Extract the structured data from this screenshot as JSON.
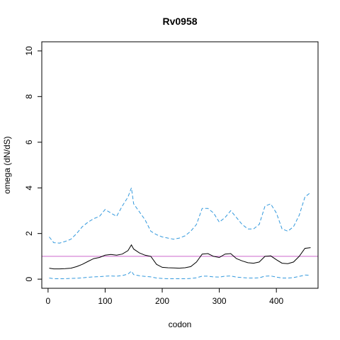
{
  "chart_data": {
    "type": "line",
    "title": "Rv0958",
    "xlabel": "codon",
    "ylabel": "omega (dN/dS)",
    "xlim": [
      -11,
      473
    ],
    "ylim": [
      -0.4,
      10.4
    ],
    "xticks": [
      0,
      100,
      200,
      300,
      400
    ],
    "yticks": [
      0,
      2,
      4,
      6,
      8,
      10
    ],
    "reference_line": {
      "y": 1,
      "color": "#cc66cc"
    },
    "grid": false,
    "legend": "none",
    "colors": {
      "estimate": "#000000",
      "bounds": "#3399dd"
    },
    "x": [
      2,
      10,
      20,
      30,
      40,
      50,
      60,
      70,
      80,
      90,
      100,
      110,
      120,
      130,
      140,
      146,
      150,
      160,
      170,
      180,
      190,
      200,
      210,
      220,
      230,
      240,
      250,
      260,
      270,
      280,
      290,
      300,
      310,
      320,
      330,
      340,
      350,
      360,
      370,
      380,
      390,
      400,
      410,
      420,
      430,
      440,
      450,
      460
    ],
    "series": [
      {
        "values": [
          0.48,
          0.45,
          0.45,
          0.46,
          0.48,
          0.55,
          0.65,
          0.78,
          0.9,
          0.95,
          1.05,
          1.08,
          1.05,
          1.1,
          1.25,
          1.5,
          1.32,
          1.15,
          1.05,
          1.0,
          0.65,
          0.52,
          0.5,
          0.49,
          0.48,
          0.5,
          0.55,
          0.75,
          1.1,
          1.12,
          1.0,
          0.95,
          1.1,
          1.12,
          0.9,
          0.8,
          0.72,
          0.7,
          0.75,
          1.0,
          1.02,
          0.85,
          0.7,
          0.68,
          0.75,
          1.0,
          1.35,
          1.38
        ]
      },
      {
        "values": [
          1.85,
          1.6,
          1.58,
          1.65,
          1.75,
          2.0,
          2.3,
          2.5,
          2.65,
          2.75,
          3.05,
          2.9,
          2.75,
          3.2,
          3.6,
          4.0,
          3.3,
          2.95,
          2.6,
          2.1,
          1.95,
          1.85,
          1.8,
          1.75,
          1.8,
          1.9,
          2.1,
          2.4,
          3.1,
          3.1,
          2.9,
          2.5,
          2.7,
          3.0,
          2.7,
          2.4,
          2.2,
          2.2,
          2.4,
          3.2,
          3.3,
          2.9,
          2.2,
          2.1,
          2.3,
          2.8,
          3.6,
          3.8
        ]
      },
      {
        "values": [
          0.05,
          0.02,
          0.02,
          0.02,
          0.03,
          0.04,
          0.06,
          0.08,
          0.1,
          0.11,
          0.13,
          0.14,
          0.13,
          0.16,
          0.22,
          0.35,
          0.2,
          0.15,
          0.12,
          0.1,
          0.05,
          0.03,
          0.02,
          0.02,
          0.02,
          0.02,
          0.03,
          0.06,
          0.13,
          0.13,
          0.1,
          0.09,
          0.13,
          0.14,
          0.09,
          0.07,
          0.05,
          0.05,
          0.06,
          0.13,
          0.14,
          0.09,
          0.05,
          0.05,
          0.07,
          0.12,
          0.18,
          0.17
        ]
      }
    ]
  }
}
